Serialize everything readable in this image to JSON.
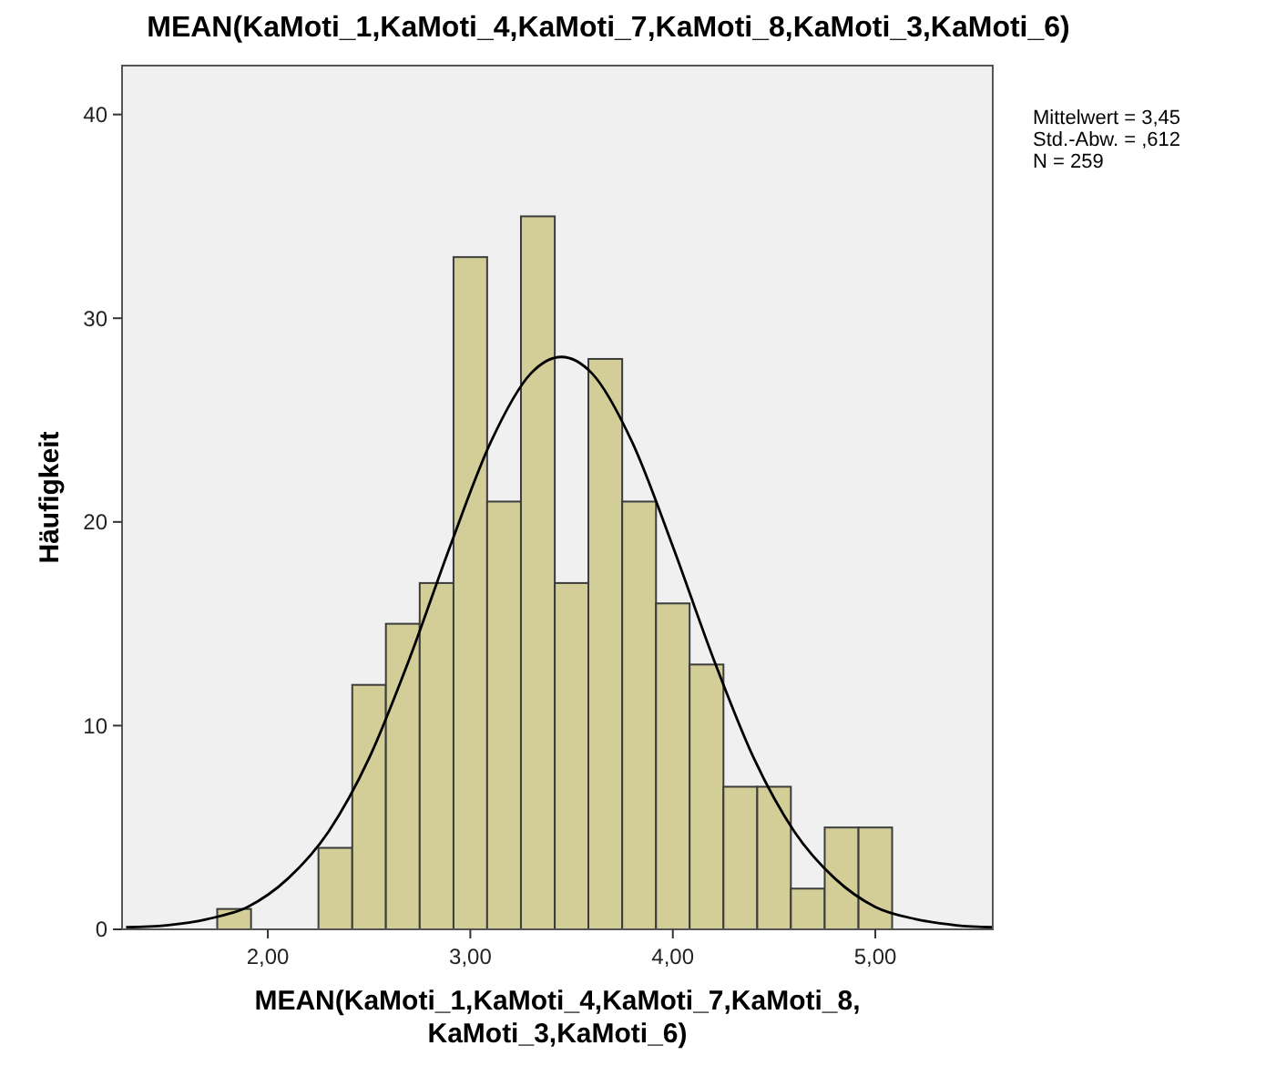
{
  "chart_data": {
    "type": "histogram",
    "title": "MEAN(KaMoti_1,KaMoti_4,KaMoti_7,KaMoti_8,KaMoti_3,KaMoti_6)",
    "xlabel": "MEAN(KaMoti_1,KaMoti_4,KaMoti_7,KaMoti_8,KaMoti_3,KaMoti_6)",
    "ylabel": "Häufigkeit",
    "bins": [
      1.75,
      1.917,
      2.083,
      2.25,
      2.417,
      2.583,
      2.75,
      2.917,
      3.083,
      3.25,
      3.417,
      3.583,
      3.75,
      3.917,
      4.083,
      4.25,
      4.417,
      4.583,
      4.75,
      4.917,
      5.083
    ],
    "series": [
      {
        "color": "#d3ce97",
        "values": [
          1,
          0,
          0,
          4,
          12,
          15,
          17,
          33,
          21,
          35,
          17,
          28,
          21,
          16,
          13,
          7,
          7,
          2,
          5,
          5
        ]
      },
      {
        "type": "line",
        "color": "#000000",
        "x": [
          1.3,
          1.5,
          1.7,
          1.9,
          2.1,
          2.3,
          2.5,
          2.7,
          2.9,
          3.1,
          3.3,
          3.45,
          3.6,
          3.8,
          4.0,
          4.2,
          4.4,
          4.6,
          4.8,
          5.0,
          5.2,
          5.4,
          5.58
        ],
        "values": [
          0.1,
          0.2,
          0.5,
          1.1,
          2.5,
          4.8,
          8.4,
          13.3,
          18.8,
          23.9,
          27.3,
          28.1,
          27.3,
          23.9,
          18.8,
          13.3,
          8.4,
          4.8,
          2.5,
          1.1,
          0.5,
          0.2,
          0.1
        ]
      }
    ],
    "xlim": [
      1.28,
      5.58
    ],
    "ylim": [
      0,
      42.4
    ],
    "xticks": [
      {
        "value": 2,
        "label": "2,00"
      },
      {
        "value": 3,
        "label": "3,00"
      },
      {
        "value": 4,
        "label": "4,00"
      },
      {
        "value": 5,
        "label": "5,00"
      }
    ],
    "yticks": [
      0,
      10,
      20,
      30,
      40
    ],
    "annotations": [
      "Mittelwert = 3,45",
      "Std.-Abw. = ,612",
      "N = 259"
    ]
  }
}
